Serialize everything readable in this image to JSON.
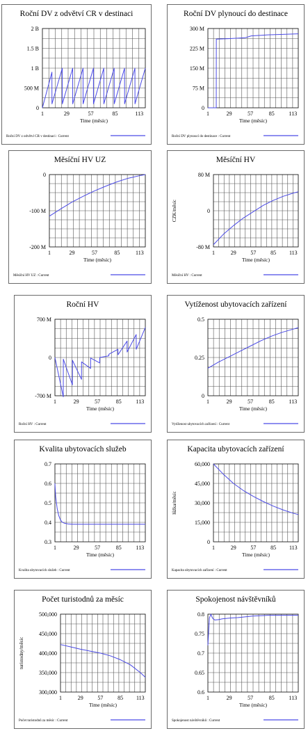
{
  "app": {
    "title": ""
  },
  "chart_data": [
    {
      "type": "line",
      "title": "Roční DV z odvětví CR v destinaci",
      "xlabel": "Time (měsíc)",
      "ylabel": "",
      "xticks": [
        "1",
        "29",
        "57",
        "85",
        "113"
      ],
      "yticks": [
        "0",
        "500 M",
        "1 B",
        "1.5 B",
        "2 B"
      ],
      "xlim": [
        1,
        120
      ],
      "ylim": [
        0,
        2000000000
      ],
      "series": [
        {
          "name": "Roční DV z odvětví CR v destinaci : Current",
          "x": [
            1,
            12,
            12.05,
            24,
            24.05,
            36,
            36.05,
            48,
            48.05,
            60,
            60.05,
            72,
            72.05,
            84,
            84.05,
            96,
            96.05,
            108,
            108.05,
            120
          ],
          "y": [
            0,
            900000000,
            100000000,
            1000000000,
            100000000,
            1000000000,
            100000000,
            1000000000,
            100000000,
            1000000000,
            100000000,
            1000000000,
            100000000,
            1000000000,
            100000000,
            1000000000,
            100000000,
            1000000000,
            100000000,
            1000000000
          ]
        }
      ],
      "grid": true,
      "legend": "bottom"
    },
    {
      "type": "line",
      "title": "Roční DV plynoucí do destinace",
      "xlabel": "Time (měsíc)",
      "ylabel": "",
      "xticks": [
        "1",
        "29",
        "57",
        "85",
        "113"
      ],
      "yticks": [
        "0",
        "75 M",
        "150 M",
        "225 M",
        "300 M"
      ],
      "xlim": [
        1,
        120
      ],
      "ylim": [
        0,
        300000000
      ],
      "series": [
        {
          "name": "Roční DV plynoucí do destinace : Current",
          "x": [
            1,
            12,
            12.1,
            30,
            50,
            58,
            80,
            100,
            120
          ],
          "y": [
            0,
            0,
            260000000,
            262000000,
            265000000,
            272000000,
            276000000,
            278000000,
            280000000
          ]
        }
      ],
      "grid": true,
      "legend": "bottom"
    },
    {
      "type": "line",
      "title": "Měsíční HV UZ",
      "xlabel": "Time (měsíc)",
      "ylabel": "",
      "xticks": [
        "1",
        "29",
        "57",
        "85",
        "113"
      ],
      "yticks": [
        "-200 M",
        "-100 M",
        "0"
      ],
      "xlim": [
        1,
        120
      ],
      "ylim": [
        -200000000,
        0
      ],
      "series": [
        {
          "name": "Měsíční HV UZ : Current",
          "x": [
            1,
            15,
            29,
            43,
            57,
            71,
            85,
            99,
            113,
            120
          ],
          "y": [
            -115000000,
            -95000000,
            -76000000,
            -60000000,
            -45000000,
            -32000000,
            -20000000,
            -10000000,
            -3000000,
            0
          ]
        }
      ],
      "grid": true,
      "legend": "bottom"
    },
    {
      "type": "line",
      "title": "Měsíční HV",
      "xlabel": "Time (měsíc)",
      "ylabel": "CZK/měsíc",
      "xticks": [
        "1",
        "29",
        "57",
        "85",
        "113"
      ],
      "yticks": [
        "-80 M",
        "0",
        "80 M"
      ],
      "xlim": [
        1,
        120
      ],
      "ylim": [
        -80000000,
        80000000
      ],
      "series": [
        {
          "name": "Měsíční HV : Current",
          "x": [
            1,
            15,
            29,
            43,
            57,
            71,
            85,
            99,
            113,
            120
          ],
          "y": [
            -75000000,
            -52000000,
            -33000000,
            -16000000,
            -2000000,
            12000000,
            23000000,
            32000000,
            39000000,
            42000000
          ]
        }
      ],
      "grid": true,
      "legend": "bottom"
    },
    {
      "type": "line",
      "title": "Roční HV",
      "xlabel": "Time (měsíc)",
      "ylabel": "",
      "xticks": [
        "1",
        "29",
        "57",
        "85",
        "113"
      ],
      "yticks": [
        "-700 M",
        "0",
        "700 M"
      ],
      "xlim": [
        1,
        120
      ],
      "ylim": [
        -700000000,
        700000000
      ],
      "series": [
        {
          "name": "Roční HV : Current",
          "x": [
            1,
            12,
            12.05,
            24,
            24.05,
            36,
            36.05,
            48,
            48.05,
            60,
            60.05,
            72,
            72.05,
            84,
            84.05,
            96,
            96.05,
            108,
            108.05,
            120
          ],
          "y": [
            0,
            -720000000,
            -30000000,
            -500000000,
            -50000000,
            -400000000,
            -80000000,
            -200000000,
            -10000000,
            -100000000,
            0,
            30000000,
            60000000,
            150000000,
            50000000,
            300000000,
            100000000,
            420000000,
            150000000,
            550000000
          ]
        }
      ],
      "grid": true,
      "legend": "bottom"
    },
    {
      "type": "line",
      "title": "Vytíženost ubytovacích zařízení",
      "xlabel": "Time (měsíc)",
      "ylabel": "",
      "xticks": [
        "1",
        "29",
        "57",
        "85",
        "113"
      ],
      "yticks": [
        "0",
        "0.25",
        "0.5"
      ],
      "xlim": [
        1,
        120
      ],
      "ylim": [
        0,
        0.5
      ],
      "series": [
        {
          "name": "Vytíženost ubytovacích zařízení : Current",
          "x": [
            1,
            15,
            29,
            43,
            57,
            71,
            85,
            99,
            113,
            120
          ],
          "y": [
            0.18,
            0.22,
            0.255,
            0.29,
            0.325,
            0.36,
            0.39,
            0.415,
            0.435,
            0.445
          ]
        }
      ],
      "grid": true,
      "legend": "bottom"
    },
    {
      "type": "line",
      "title": "Kvalita ubytovacích služeb",
      "xlabel": "Time (měsíc)",
      "ylabel": "",
      "xticks": [
        "1",
        "29",
        "57",
        "85",
        "113"
      ],
      "yticks": [
        "0.3",
        "0.4",
        "0.5",
        "0.6",
        "0.7"
      ],
      "xlim": [
        1,
        120
      ],
      "ylim": [
        0.3,
        0.7
      ],
      "series": [
        {
          "name": "Kvalita ubytovacích služeb : Current",
          "x": [
            1,
            2,
            4,
            6,
            8,
            10,
            13,
            18,
            25,
            40,
            60,
            80,
            100,
            120
          ],
          "y": [
            0.6,
            0.53,
            0.47,
            0.435,
            0.415,
            0.403,
            0.396,
            0.392,
            0.39,
            0.39,
            0.39,
            0.39,
            0.39,
            0.39
          ]
        }
      ],
      "grid": true,
      "legend": "bottom"
    },
    {
      "type": "line",
      "title": "Kapacita ubytovacích zařízení",
      "xlabel": "Time (měsíc)",
      "ylabel": "lůžka/měsíc",
      "xticks": [
        "1",
        "29",
        "57",
        "85",
        "113"
      ],
      "yticks": [
        "0",
        "15,000",
        "30,000",
        "45,000",
        "60,000"
      ],
      "xlim": [
        1,
        120
      ],
      "ylim": [
        0,
        60000
      ],
      "series": [
        {
          "name": "Kapacita ubytovacích zařízení : Current",
          "x": [
            1,
            15,
            29,
            43,
            57,
            71,
            85,
            99,
            113,
            120
          ],
          "y": [
            60000,
            52000,
            45000,
            39500,
            35000,
            31000,
            27500,
            24500,
            22000,
            21000
          ]
        }
      ],
      "grid": true,
      "legend": "bottom"
    },
    {
      "type": "line",
      "title": "Počet turistodnů za měsíc",
      "xlabel": "Time (měsíc)",
      "ylabel": "turistodny/měsíc",
      "xticks": [
        "1",
        "29",
        "57",
        "85",
        "113"
      ],
      "yticks": [
        "300,000",
        "350,000",
        "400,000",
        "450,000",
        "500,000"
      ],
      "xlim": [
        1,
        120
      ],
      "ylim": [
        300000,
        500000
      ],
      "series": [
        {
          "name": "Počet turistodnů za měsíc : Current",
          "x": [
            1,
            15,
            29,
            43,
            57,
            71,
            85,
            99,
            113,
            120
          ],
          "y": [
            422000,
            416000,
            410000,
            405000,
            400000,
            393000,
            383000,
            370000,
            350000,
            338000
          ]
        }
      ],
      "grid": true,
      "legend": "bottom"
    },
    {
      "type": "line",
      "title": "Spokojenost návštěvníků",
      "xlabel": "Time (měsíc)",
      "ylabel": "",
      "xticks": [
        "1",
        "29",
        "57",
        "85",
        "113"
      ],
      "yticks": [
        "0.6",
        "0.65",
        "0.7",
        "0.75",
        "0.8"
      ],
      "xlim": [
        1,
        120
      ],
      "ylim": [
        0.6,
        0.8
      ],
      "series": [
        {
          "name": "Spokojenost návštěvníků : Current",
          "x": [
            1,
            3,
            5,
            7,
            10,
            15,
            20,
            30,
            40,
            50,
            60,
            70,
            80,
            90,
            100,
            110,
            120
          ],
          "y": [
            0.72,
            0.79,
            0.8,
            0.79,
            0.785,
            0.786,
            0.788,
            0.79,
            0.791,
            0.793,
            0.795,
            0.796,
            0.797,
            0.797,
            0.797,
            0.797,
            0.797
          ]
        }
      ],
      "grid": true,
      "legend": "bottom"
    }
  ],
  "colors": {
    "line": "#4a4ae6",
    "grid": "#555555",
    "axis": "#000000"
  }
}
